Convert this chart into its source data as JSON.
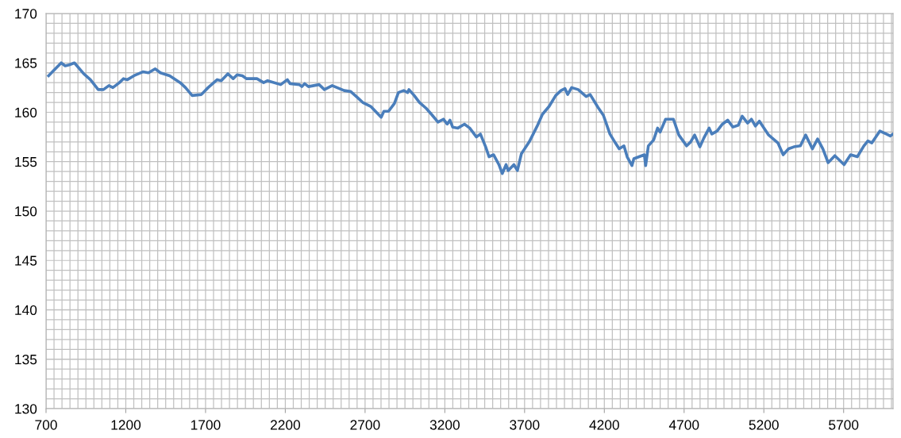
{
  "chart_data": {
    "type": "line",
    "x": [
      716,
      746,
      795,
      820,
      845,
      878,
      936,
      978,
      1027,
      1060,
      1094,
      1119,
      1160,
      1185,
      1210,
      1251,
      1309,
      1342,
      1384,
      1417,
      1475,
      1541,
      1574,
      1616,
      1674,
      1716,
      1773,
      1798,
      1840,
      1873,
      1898,
      1931,
      1956,
      2022,
      2064,
      2089,
      2171,
      2213,
      2230,
      2288,
      2304,
      2321,
      2345,
      2412,
      2445,
      2494,
      2569,
      2610,
      2652,
      2685,
      2735,
      2801,
      2818,
      2847,
      2884,
      2909,
      2942,
      2967,
      2975,
      3008,
      3041,
      3083,
      3116,
      3157,
      3191,
      3215,
      3232,
      3249,
      3282,
      3323,
      3356,
      3398,
      3423,
      3456,
      3477,
      3506,
      3539,
      3560,
      3584,
      3597,
      3633,
      3655,
      3680,
      3729,
      3779,
      3812,
      3854,
      3895,
      3928,
      3953,
      3970,
      3995,
      4036,
      4086,
      4111,
      4160,
      4194,
      4235,
      4269,
      4293,
      4323,
      4343,
      4373,
      4385,
      4418,
      4451,
      4459,
      4476,
      4509,
      4534,
      4550,
      4584,
      4633,
      4667,
      4716,
      4741,
      4766,
      4799,
      4824,
      4857,
      4874,
      4907,
      4940,
      4973,
      5006,
      5040,
      5064,
      5098,
      5122,
      5147,
      5172,
      5230,
      5288,
      5321,
      5355,
      5388,
      5429,
      5462,
      5504,
      5537,
      5570,
      5603,
      5645,
      5703,
      5744,
      5786,
      5827,
      5852,
      5877,
      5927,
      5968,
      5993,
      6010
    ],
    "series": [
      {
        "color": "#4a7ebb",
        "values": [
          163.7,
          164.2,
          165.0,
          164.7,
          164.8,
          165.0,
          163.9,
          163.3,
          162.3,
          162.3,
          162.7,
          162.5,
          163.0,
          163.4,
          163.3,
          163.7,
          164.1,
          164.0,
          164.4,
          164.0,
          163.7,
          163.0,
          162.5,
          161.7,
          161.8,
          162.5,
          163.3,
          163.2,
          163.9,
          163.4,
          163.8,
          163.7,
          163.4,
          163.4,
          163.0,
          163.2,
          162.8,
          163.3,
          162.9,
          162.8,
          162.6,
          162.9,
          162.6,
          162.8,
          162.3,
          162.7,
          162.2,
          162.1,
          161.5,
          161.0,
          160.6,
          159.5,
          160.1,
          160.1,
          160.9,
          162.0,
          162.2,
          162.0,
          162.3,
          161.7,
          161.0,
          160.4,
          159.8,
          159.0,
          159.3,
          158.8,
          159.2,
          158.5,
          158.4,
          158.8,
          158.4,
          157.5,
          157.8,
          156.5,
          155.5,
          155.7,
          154.7,
          153.8,
          154.7,
          154.1,
          154.7,
          154.1,
          155.8,
          157.0,
          158.6,
          159.8,
          160.6,
          161.7,
          162.2,
          162.4,
          161.8,
          162.5,
          162.3,
          161.6,
          161.8,
          160.5,
          159.7,
          157.8,
          156.9,
          156.3,
          156.6,
          155.5,
          154.6,
          155.3,
          155.5,
          155.7,
          154.6,
          156.6,
          157.2,
          158.4,
          158.0,
          159.3,
          159.3,
          157.7,
          156.6,
          157.0,
          157.7,
          156.5,
          157.4,
          158.4,
          157.8,
          158.1,
          158.8,
          159.2,
          158.5,
          158.7,
          159.6,
          158.9,
          159.3,
          158.6,
          159.1,
          157.7,
          156.9,
          155.7,
          156.3,
          156.5,
          156.6,
          157.7,
          156.3,
          157.3,
          156.3,
          154.9,
          155.6,
          154.7,
          155.7,
          155.5,
          156.6,
          157.1,
          156.9,
          158.1,
          157.8,
          157.6,
          157.8
        ]
      }
    ],
    "xlim": [
      700,
      6010
    ],
    "xticks": [
      700,
      1200,
      1700,
      2200,
      2700,
      3200,
      3700,
      4200,
      4700,
      5200,
      5700
    ],
    "ylim": [
      130,
      170
    ],
    "yticks": [
      130,
      135,
      140,
      145,
      150,
      155,
      160,
      165,
      170
    ],
    "grid": true,
    "marker": "none",
    "line_style": "solid"
  }
}
